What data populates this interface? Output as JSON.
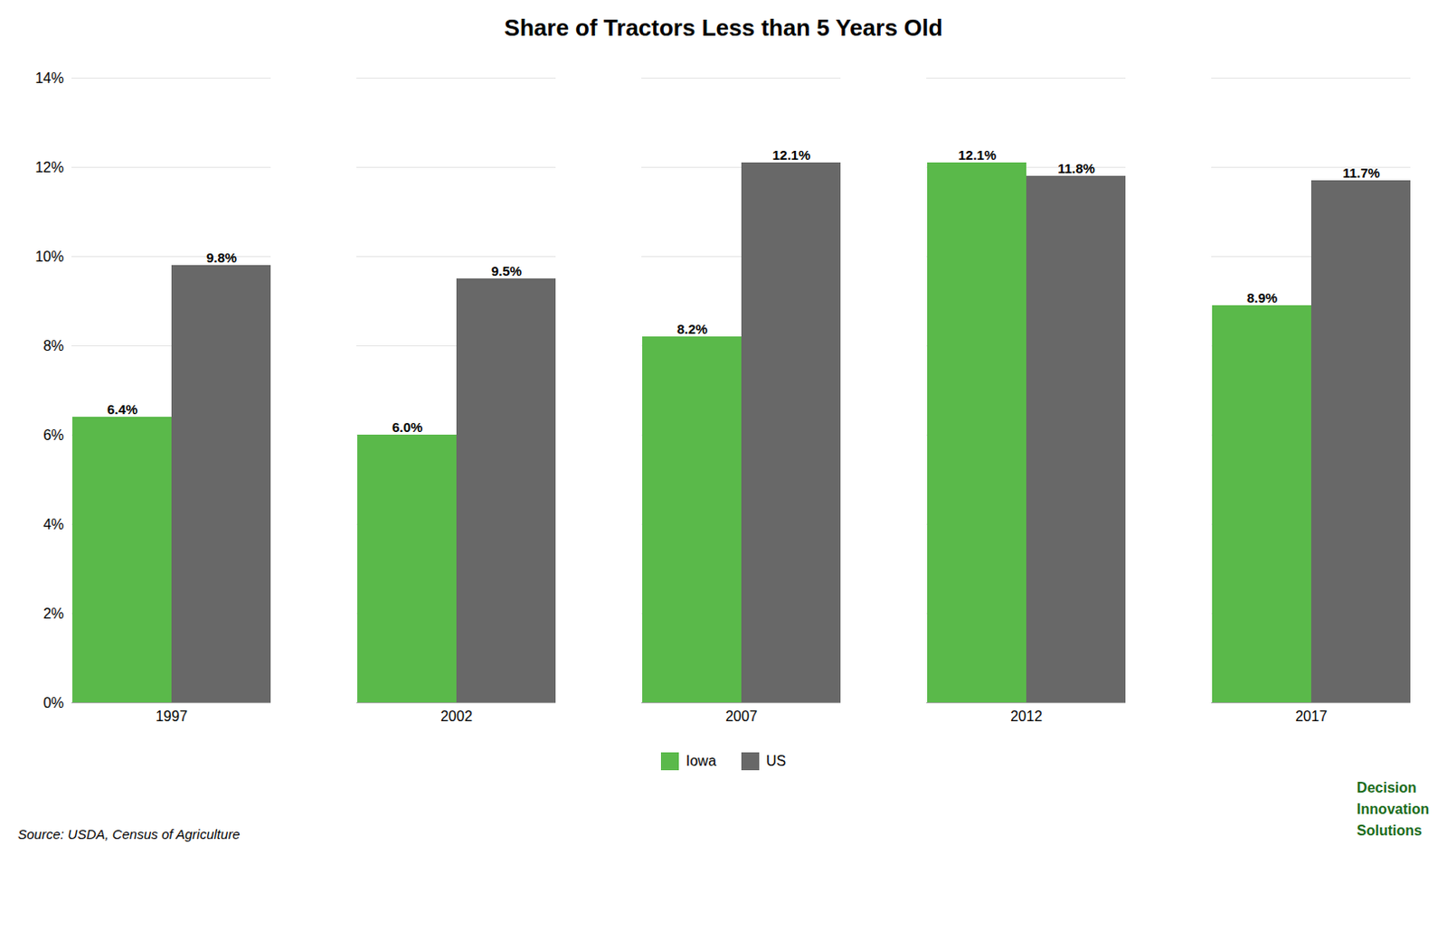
{
  "chart_data": {
    "type": "bar",
    "title": "Share of Tractors Less than 5 Years Old",
    "categories": [
      "1997",
      "2002",
      "2007",
      "2012",
      "2017"
    ],
    "series": [
      {
        "name": "Iowa",
        "color": "#5ab94a",
        "values": [
          0.064,
          0.06,
          0.082,
          0.121,
          0.089
        ],
        "value_labels": [
          "6.4%",
          "6.0%",
          "8.2%",
          "12.1%",
          "8.9%"
        ]
      },
      {
        "name": "US",
        "color": "#686868",
        "values": [
          0.098,
          0.095,
          0.121,
          0.118,
          0.117
        ],
        "value_labels": [
          "9.8%",
          "9.5%",
          "12.1%",
          "11.8%",
          "11.7%"
        ]
      }
    ],
    "ylim": [
      0,
      0.14
    ],
    "yticks": [
      {
        "value": 0.0,
        "label": "0%"
      },
      {
        "value": 0.02,
        "label": "2%"
      },
      {
        "value": 0.04,
        "label": "4%"
      },
      {
        "value": 0.06,
        "label": "6%"
      },
      {
        "value": 0.08,
        "label": "8%"
      },
      {
        "value": 0.1,
        "label": "10%"
      },
      {
        "value": 0.12,
        "label": "12%"
      },
      {
        "value": 0.14,
        "label": "14%"
      }
    ],
    "grid": true,
    "legend": "bottom",
    "data_labels": true,
    "annotations": [
      {
        "text": "Source: USDA, Census of Agriculture"
      },
      {
        "text": "Decision\nInnovation\nSolutions",
        "color": "#1a6b1a"
      }
    ]
  }
}
